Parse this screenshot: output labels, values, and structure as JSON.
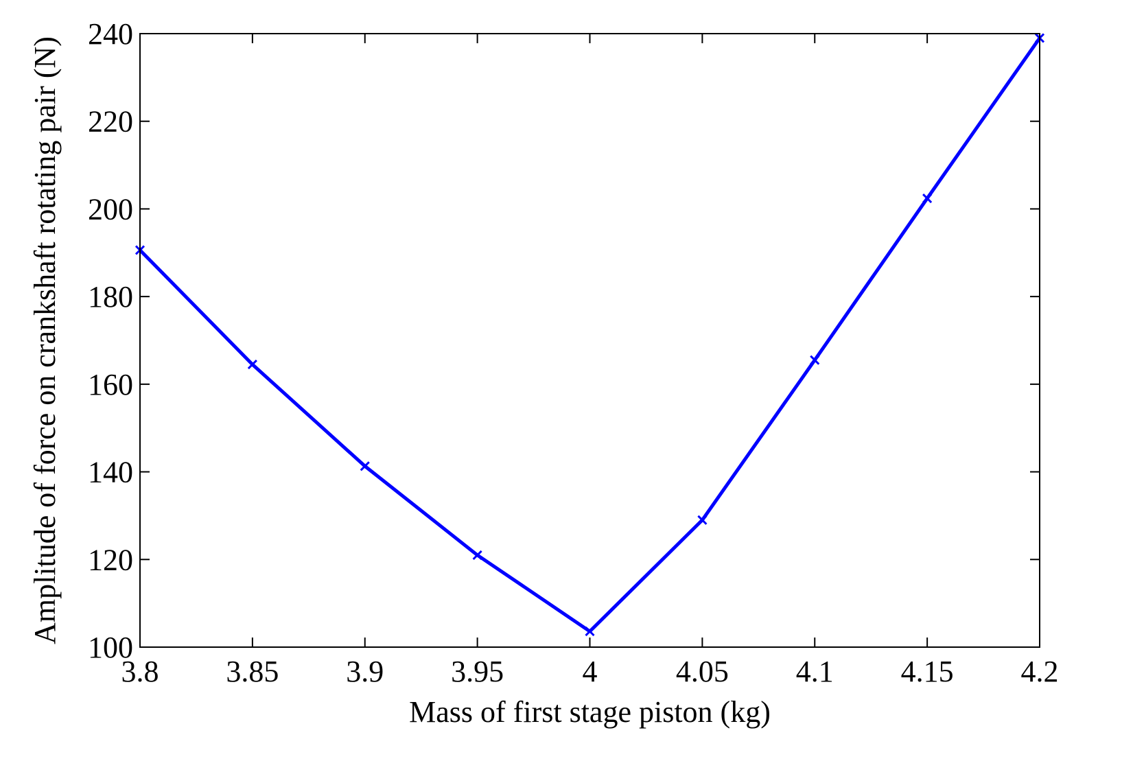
{
  "chart_data": {
    "type": "line",
    "title": "",
    "xlabel": "Mass of first stage piston (kg)",
    "ylabel": "Amplitude of force on crankshaft rotating pair (N)",
    "xlim": [
      3.8,
      4.2
    ],
    "ylim": [
      100,
      240
    ],
    "xticks": [
      3.8,
      3.85,
      3.9,
      3.95,
      4.0,
      4.05,
      4.1,
      4.15,
      4.2
    ],
    "xtick_labels": [
      "3.8",
      "3.85",
      "3.9",
      "3.95",
      "4",
      "4.05",
      "4.1",
      "4.15",
      "4.2"
    ],
    "yticks": [
      100,
      120,
      140,
      160,
      180,
      200,
      220,
      240
    ],
    "ytick_labels": [
      "100",
      "120",
      "140",
      "160",
      "180",
      "200",
      "220",
      "240"
    ],
    "grid": false,
    "series": [
      {
        "color": "#0000ff",
        "marker": "x",
        "x": [
          3.8,
          3.85,
          3.9,
          3.95,
          4.0,
          4.05,
          4.1,
          4.15,
          4.2
        ],
        "y": [
          190.6,
          164.5,
          141.3,
          121.0,
          103.6,
          129.0,
          165.5,
          202.4,
          239.0
        ]
      }
    ]
  }
}
